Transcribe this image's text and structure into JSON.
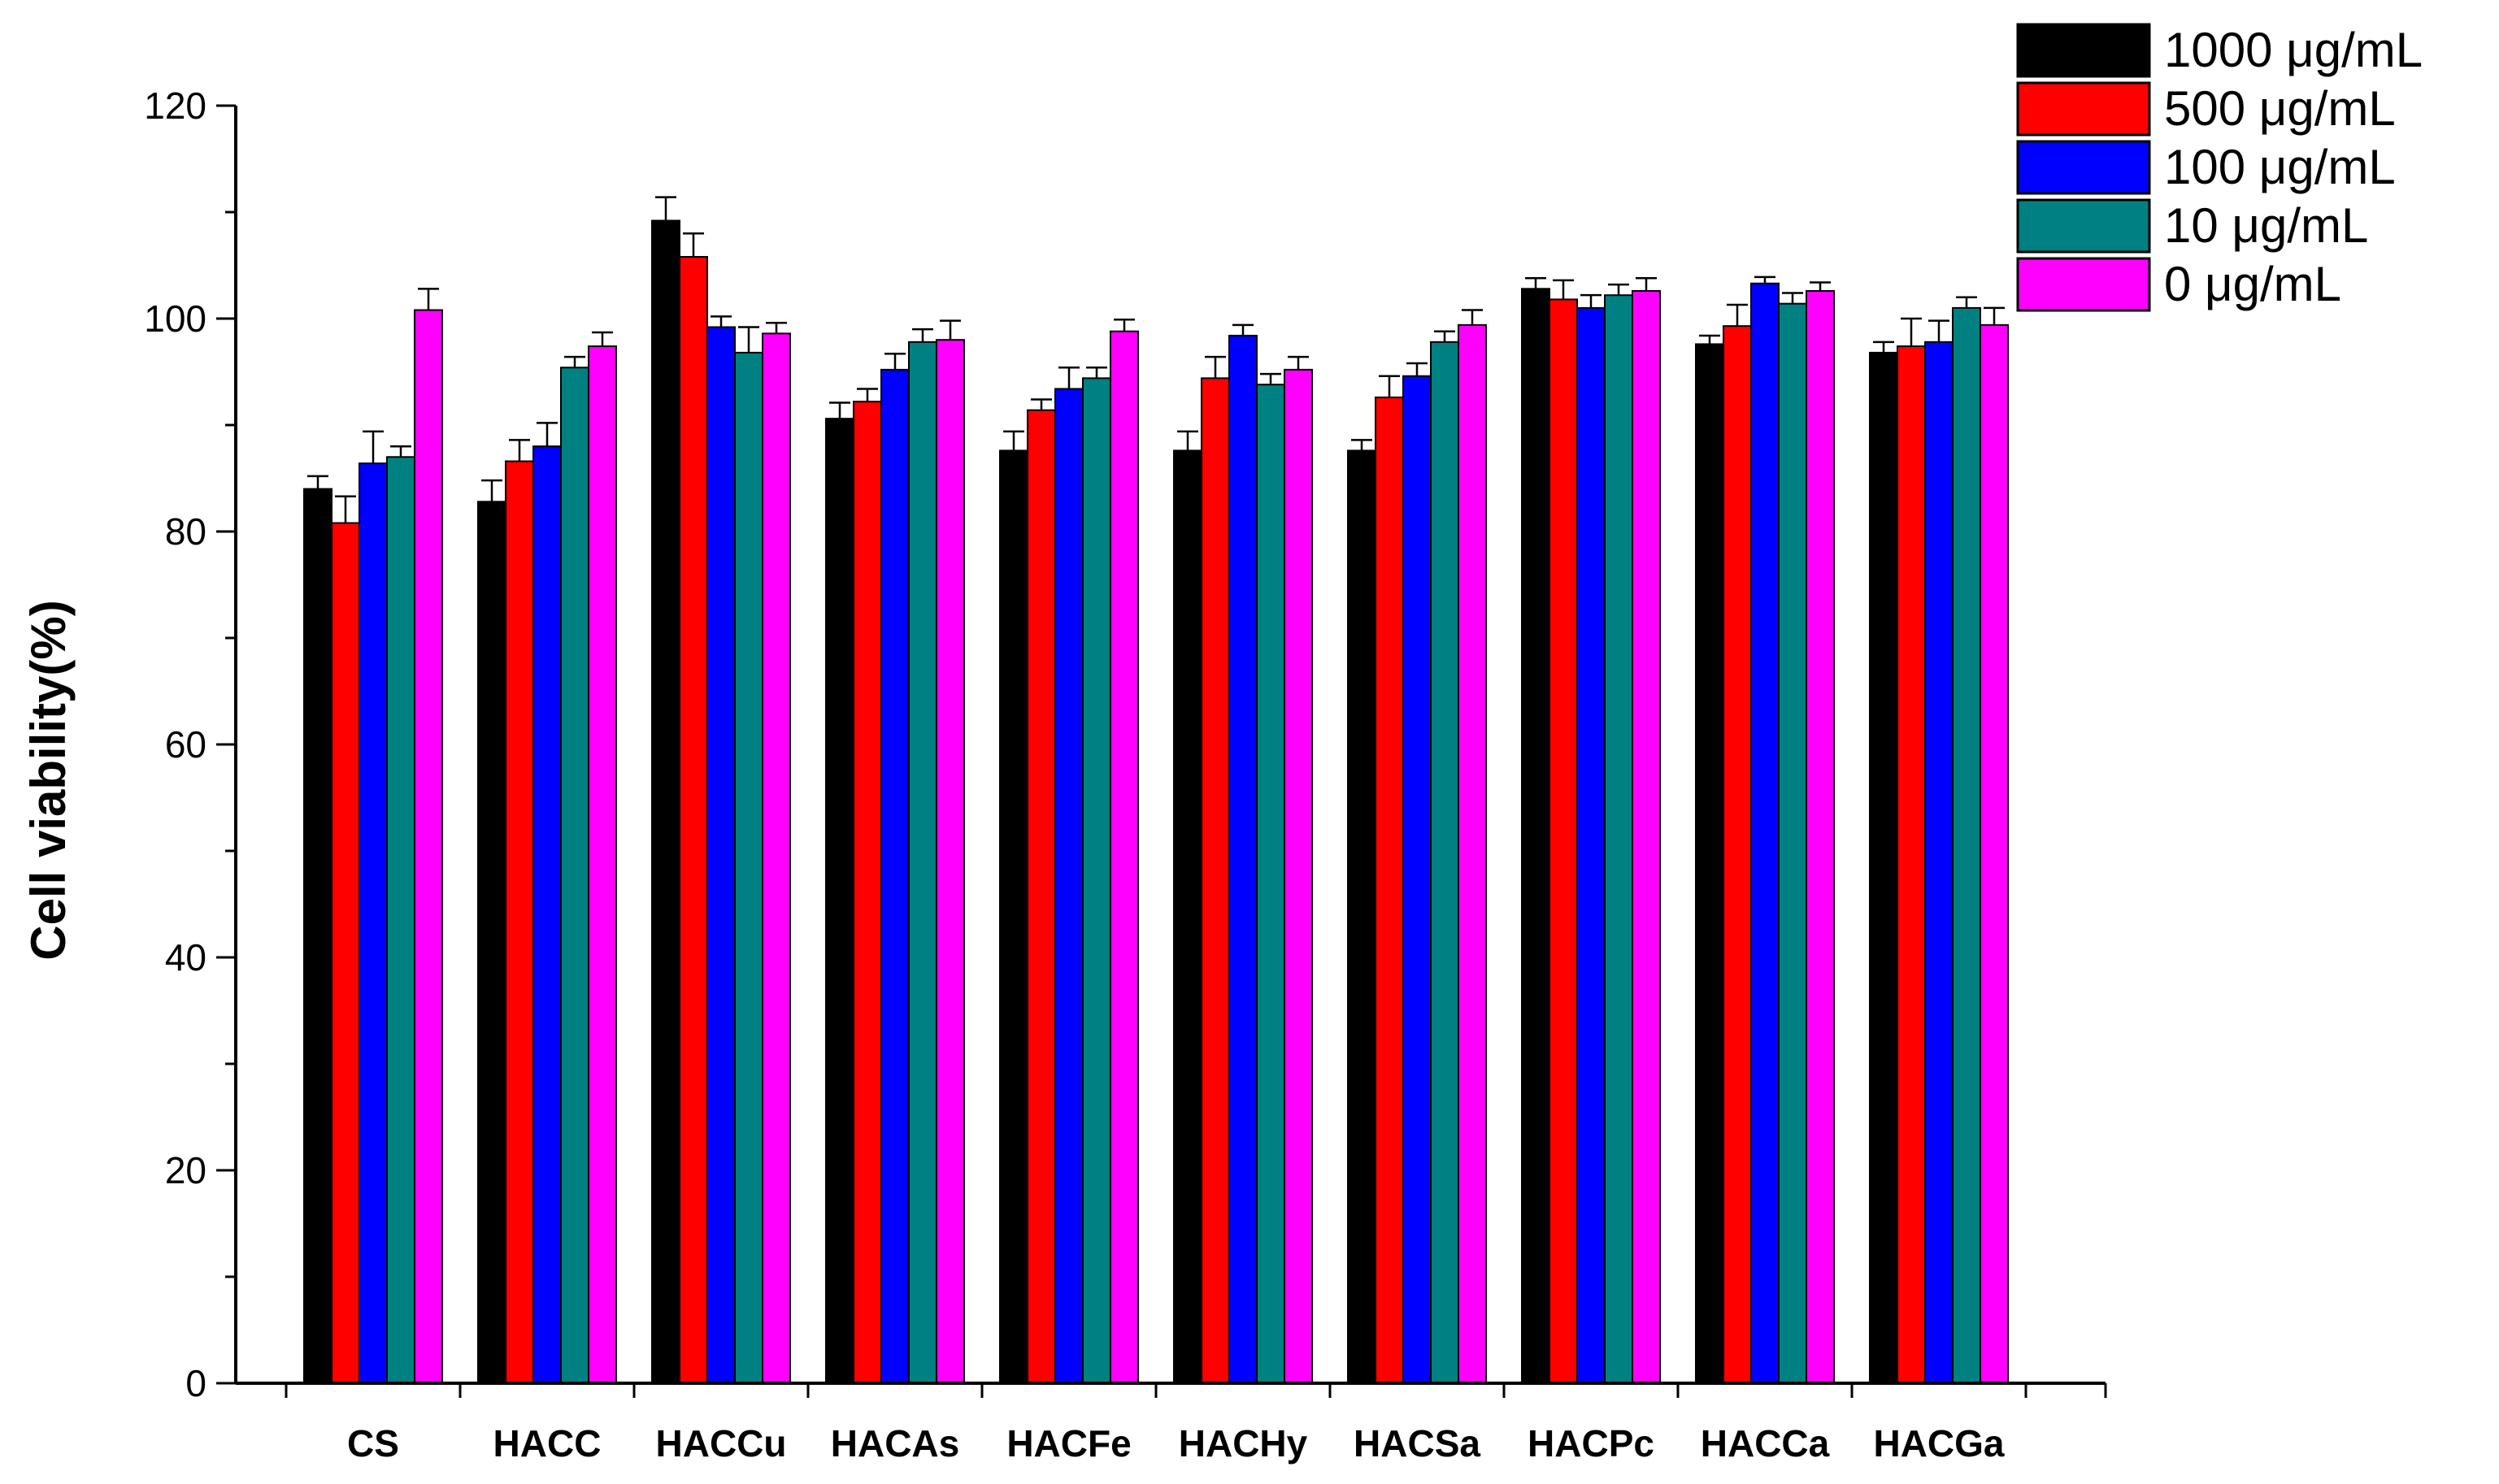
{
  "chart_data": {
    "type": "bar",
    "title": "",
    "xlabel": "",
    "ylabel": "Cell viability(%)",
    "ylim": [
      0,
      120
    ],
    "yticks": [
      0,
      20,
      40,
      60,
      80,
      100,
      120
    ],
    "grid": false,
    "legend_position": "top-right",
    "categories": [
      "CS",
      "HACC",
      "HACCu",
      "HACAs",
      "HACFe",
      "HACHy",
      "HACSa",
      "HACPc",
      "HACCa",
      "HACGa"
    ],
    "series": [
      {
        "name": "1000 μg/mL",
        "color": "#000000",
        "values": [
          84,
          82.8,
          109.2,
          90.6,
          87.6,
          87.6,
          87.6,
          102.8,
          97.6,
          96.8
        ],
        "errors": [
          1.2,
          2.0,
          2.2,
          1.5,
          1.8,
          1.8,
          1.0,
          1.0,
          0.8,
          1.0
        ]
      },
      {
        "name": "500 μg/mL",
        "color": "#ff0000",
        "values": [
          80.8,
          86.6,
          105.8,
          92.2,
          91.4,
          94.4,
          92.6,
          101.8,
          99.3,
          97.4
        ],
        "errors": [
          2.5,
          2.0,
          2.2,
          1.2,
          1.0,
          2.0,
          2.0,
          1.8,
          2.0,
          2.6
        ]
      },
      {
        "name": "100 μg/mL",
        "color": "#0000ff",
        "values": [
          86.4,
          88,
          99.2,
          95.2,
          93.4,
          98.4,
          94.6,
          101,
          103.3,
          97.8
        ],
        "errors": [
          3.0,
          2.2,
          1.0,
          1.5,
          2.0,
          1.0,
          1.2,
          1.2,
          0.6,
          2.0
        ]
      },
      {
        "name": "10 μg/mL",
        "color": "#008080",
        "values": [
          87,
          95.4,
          96.8,
          97.8,
          94.4,
          93.8,
          97.8,
          102.2,
          101.4,
          101
        ],
        "errors": [
          1.0,
          1.0,
          2.4,
          1.2,
          1.0,
          1.0,
          1.0,
          1.0,
          1.0,
          1.0
        ]
      },
      {
        "name": "0 μg/mL",
        "color": "#ff00ff",
        "values": [
          100.8,
          97.4,
          98.6,
          98,
          98.8,
          95.2,
          99.4,
          102.6,
          102.6,
          99.4
        ],
        "errors": [
          2.0,
          1.3,
          1.0,
          1.8,
          1.1,
          1.2,
          1.4,
          1.2,
          0.8,
          1.6
        ]
      }
    ]
  }
}
